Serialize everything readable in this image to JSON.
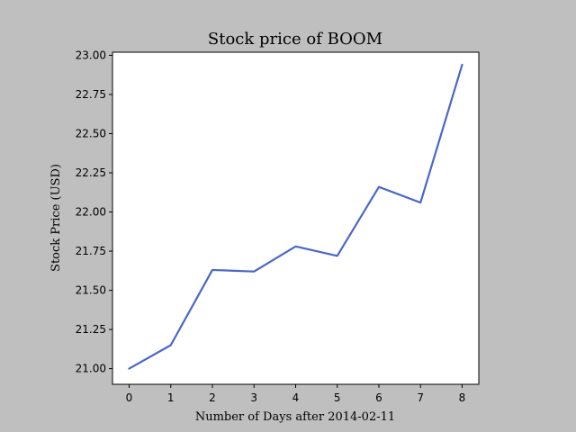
{
  "chart_data": {
    "type": "line",
    "title": "Stock price of BOOM",
    "xlabel": "Number of Days after 2014-02-11",
    "ylabel": "Stock Price (USD)",
    "x": [
      0,
      1,
      2,
      3,
      4,
      5,
      6,
      7,
      8
    ],
    "series": [
      {
        "values": [
          21.0,
          21.15,
          21.63,
          21.62,
          21.78,
          21.72,
          22.16,
          22.06,
          22.94
        ]
      }
    ],
    "xlim": [
      -0.4,
      8.4
    ],
    "ylim": [
      20.9,
      23.02
    ],
    "xticks": [
      "0",
      "1",
      "2",
      "3",
      "4",
      "5",
      "6",
      "7",
      "8"
    ],
    "yticks": [
      "21.00",
      "21.25",
      "21.50",
      "21.75",
      "22.00",
      "22.25",
      "22.50",
      "22.75",
      "23.00"
    ],
    "grid": false,
    "colors": {
      "line": "#4a67c9",
      "background": "#bfbfbf",
      "plot_area": "#ffffff"
    }
  }
}
